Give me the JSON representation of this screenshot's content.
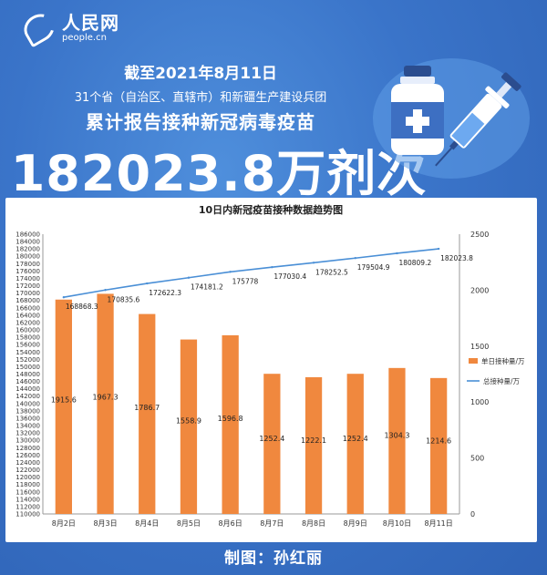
{
  "header": {
    "logo_cn": "人民网",
    "logo_url": "people.cn",
    "date_line": "截至2021年8月11日",
    "sub_line": "31个省（自治区、直辖市）和新疆生产建设兵团",
    "title_line": "累计报告接种新冠病毒疫苗",
    "big_number": "182023.8万剂次"
  },
  "credit": "制图：孙红丽",
  "colors": {
    "bar": "#f0883e",
    "line": "#4a8fd6",
    "background": "#3a74c9"
  },
  "chart_data": {
    "type": "bar",
    "title": "10日内新冠疫苗接种数据趋势图",
    "categories": [
      "8月2日",
      "8月3日",
      "8月4日",
      "8月5日",
      "8月6日",
      "8月7日",
      "8月8日",
      "8月9日",
      "8月10日",
      "8月11日"
    ],
    "series": [
      {
        "name": "单日接种量/万",
        "type": "bar",
        "axis": "right",
        "values": [
          1915.6,
          1967.3,
          1786.7,
          1558.9,
          1596.8,
          1252.4,
          1222.1,
          1252.4,
          1304.3,
          1214.6
        ],
        "labels": [
          "1915.6",
          "1967.3",
          "1786.7",
          "1558.9",
          "1596.8",
          "1252.4",
          "1222.1",
          "1252.4",
          "1304.3",
          "1214.6"
        ]
      },
      {
        "name": "总接种量/万",
        "type": "line",
        "axis": "left",
        "values": [
          168868.3,
          170835.6,
          172622.3,
          174181.2,
          175778,
          177030.4,
          178252.5,
          179504.9,
          180809.2,
          182023.8
        ],
        "labels": [
          "168868.3",
          "170835.6",
          "172622.3",
          "174181.2",
          "175778",
          "177030.4",
          "178252.5",
          "179504.9",
          "180809.2",
          "182023.8"
        ]
      }
    ],
    "y_left": {
      "min": 110000,
      "max": 186000,
      "ticks": [
        "110000",
        "112000",
        "114000",
        "116000",
        "118000",
        "120000",
        "122000",
        "124000",
        "126000",
        "128000",
        "130000",
        "132000",
        "134000",
        "136000",
        "138000",
        "140000",
        "142000",
        "144000",
        "146000",
        "148000",
        "150000",
        "152000",
        "154000",
        "156000",
        "158000",
        "160000",
        "162000",
        "164000",
        "166000",
        "168000",
        "170000",
        "172000",
        "174000",
        "176000",
        "178000",
        "180000",
        "182000",
        "184000",
        "186000"
      ]
    },
    "y_right": {
      "min": 0,
      "max": 2500,
      "ticks": [
        "0",
        "500",
        "1000",
        "1500",
        "2000",
        "2500"
      ]
    },
    "legend_position": "right",
    "grid": false
  }
}
